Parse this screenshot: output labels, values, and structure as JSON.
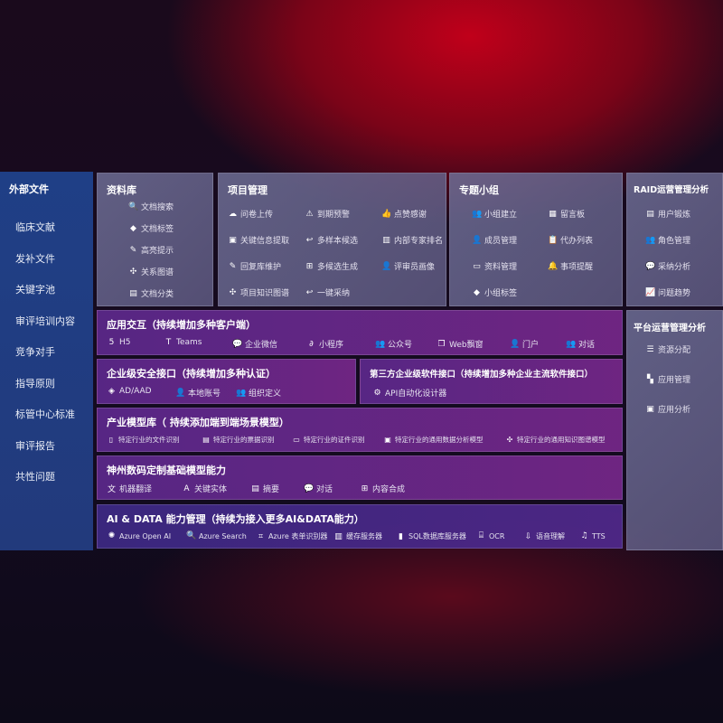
{
  "sidebar": {
    "title": "外部文件",
    "items": [
      "临床文献",
      "发补文件",
      "关键字池",
      "审评培训内容",
      "竞争对手",
      "指导原则",
      "标管中心标准",
      "审评报告",
      "共性问题"
    ]
  },
  "library": {
    "title": "资料库",
    "items": [
      {
        "icon": "document-search-icon",
        "glyph": "🔍",
        "label": "文档搜索"
      },
      {
        "icon": "tag-icon",
        "glyph": "◆",
        "label": "文档标签"
      },
      {
        "icon": "pen-icon",
        "glyph": "✎",
        "label": "高亮提示"
      },
      {
        "icon": "graph-icon",
        "glyph": "✣",
        "label": "关系图谱"
      },
      {
        "icon": "document-category-icon",
        "glyph": "▤",
        "label": "文档分类"
      }
    ]
  },
  "project": {
    "title": "项目管理",
    "items": [
      {
        "icon": "cloud-upload-icon",
        "glyph": "☁",
        "label": "问卷上传"
      },
      {
        "icon": "alarm-icon",
        "glyph": "⚠",
        "label": "到期预警"
      },
      {
        "icon": "thumbs-up-icon",
        "glyph": "👍",
        "label": "点赞感谢"
      },
      {
        "icon": "window-icon",
        "glyph": "▣",
        "label": "关键信息提取"
      },
      {
        "icon": "reply-icon",
        "glyph": "↩",
        "label": "多样本候选"
      },
      {
        "icon": "ranking-icon",
        "glyph": "▥",
        "label": "内部专家排名"
      },
      {
        "icon": "edit-icon",
        "glyph": "✎",
        "label": "回复库维护"
      },
      {
        "icon": "puzzle-icon",
        "glyph": "⊞",
        "label": "多候选生成"
      },
      {
        "icon": "user-icon",
        "glyph": "👤",
        "label": "评审员画像"
      },
      {
        "icon": "graph-icon",
        "glyph": "✣",
        "label": "项目知识图谱"
      },
      {
        "icon": "reply-icon",
        "glyph": "↩",
        "label": "一键采纳"
      }
    ]
  },
  "group": {
    "title": "专题小组",
    "items": [
      {
        "icon": "team-icon",
        "glyph": "👥",
        "label": "小组建立"
      },
      {
        "icon": "bbs-icon",
        "glyph": "▦",
        "label": "留言板"
      },
      {
        "icon": "member-icon",
        "glyph": "👤",
        "label": "成员管理"
      },
      {
        "icon": "clipboard-icon",
        "glyph": "📋",
        "label": "代办列表"
      },
      {
        "icon": "folder-icon",
        "glyph": "▭",
        "label": "资料管理"
      },
      {
        "icon": "bell-icon",
        "glyph": "🔔",
        "label": "事项提醒"
      },
      {
        "icon": "tag-icon",
        "glyph": "◆",
        "label": "小组标签"
      }
    ]
  },
  "raid": {
    "title": "RAID运营管理分析",
    "items": [
      {
        "icon": "id-card-icon",
        "glyph": "▤",
        "label": "用户锻炼"
      },
      {
        "icon": "users-icon",
        "glyph": "👥",
        "label": "角色管理"
      },
      {
        "icon": "qa-icon",
        "glyph": "💬",
        "label": "采纳分析"
      },
      {
        "icon": "trend-icon",
        "glyph": "📈",
        "label": "问题趋势"
      }
    ]
  },
  "platform": {
    "title": "平台运营管理分析",
    "items": [
      {
        "icon": "list-icon",
        "glyph": "☰",
        "label": "资源分配"
      },
      {
        "icon": "apps-icon",
        "glyph": "▚",
        "label": "应用管理"
      },
      {
        "icon": "analysis-icon",
        "glyph": "▣",
        "label": "应用分析"
      }
    ]
  },
  "app": {
    "title": "应用交互（持续增加多种客户端）",
    "items": [
      {
        "icon": "html5-icon",
        "glyph": "5",
        "label": "H5"
      },
      {
        "icon": "teams-icon",
        "glyph": "T",
        "label": "Teams"
      },
      {
        "icon": "wechat-work-icon",
        "glyph": "💬",
        "label": "企业微信"
      },
      {
        "icon": "mini-program-icon",
        "glyph": "∂",
        "label": "小程序"
      },
      {
        "icon": "official-account-icon",
        "glyph": "👥",
        "label": "公众号"
      },
      {
        "icon": "web-window-icon",
        "glyph": "❐",
        "label": "Web飘窗"
      },
      {
        "icon": "portal-icon",
        "glyph": "👤",
        "label": "门户"
      },
      {
        "icon": "dialog-icon",
        "glyph": "👥",
        "label": "对话"
      }
    ]
  },
  "security": {
    "title": "企业级安全接口（持续增加多种认证）",
    "items": [
      {
        "icon": "azure-ad-icon",
        "glyph": "◈",
        "label": "AD/AAD"
      },
      {
        "icon": "local-account-icon",
        "glyph": "👤",
        "label": "本地账号"
      },
      {
        "icon": "organization-icon",
        "glyph": "👥",
        "label": "组织定义"
      }
    ]
  },
  "thirdparty": {
    "title": "第三方企业级软件接口（持续增加多种企业主流软件接口）",
    "items": [
      {
        "icon": "gear-icon",
        "glyph": "⚙",
        "label": "API自动化设计器"
      }
    ]
  },
  "industry": {
    "title": "产业模型库（ 持续添加端到端场景模型）",
    "items": [
      {
        "icon": "file-icon",
        "glyph": "▯",
        "label": "特定行业的文件识别"
      },
      {
        "icon": "receipt-icon",
        "glyph": "▤",
        "label": "特定行业的票据识别"
      },
      {
        "icon": "id-card-icon",
        "glyph": "▭",
        "label": "特定行业的证件识别"
      },
      {
        "icon": "chart-icon",
        "glyph": "▣",
        "label": "特定行业的通用数据分析模型"
      },
      {
        "icon": "graph-icon",
        "glyph": "✣",
        "label": "特定行业的通用知识图谱模型"
      }
    ]
  },
  "base": {
    "title": "神州数码定制基础模型能力",
    "items": [
      {
        "icon": "translate-icon",
        "glyph": "文",
        "label": "机器翻译"
      },
      {
        "icon": "entity-icon",
        "glyph": "A",
        "label": "关键实体"
      },
      {
        "icon": "summary-icon",
        "glyph": "▤",
        "label": "摘要"
      },
      {
        "icon": "chat-icon",
        "glyph": "💬",
        "label": "对话"
      },
      {
        "icon": "compose-icon",
        "glyph": "⊞",
        "label": "内容合成"
      }
    ]
  },
  "ai": {
    "title": "AI & DATA 能力管理（持续为接入更多AI&DATA能力）",
    "items": [
      {
        "icon": "openai-icon",
        "glyph": "✺",
        "label": "Azure Open AI"
      },
      {
        "icon": "azure-search-icon",
        "glyph": "🔍",
        "label": "Azure Search"
      },
      {
        "icon": "form-recognizer-icon",
        "glyph": "⌗",
        "label": "Azure 表单识别器"
      },
      {
        "icon": "cache-server-icon",
        "glyph": "▥",
        "label": "缓存服务器"
      },
      {
        "icon": "sql-database-icon",
        "glyph": "▮",
        "label": "SQL数据库服务器"
      },
      {
        "icon": "ocr-icon",
        "glyph": "⌸",
        "label": "OCR"
      },
      {
        "icon": "speech-icon",
        "glyph": "⇩",
        "label": "语音理解"
      },
      {
        "icon": "tts-icon",
        "glyph": "♫",
        "label": "TTS"
      }
    ]
  }
}
